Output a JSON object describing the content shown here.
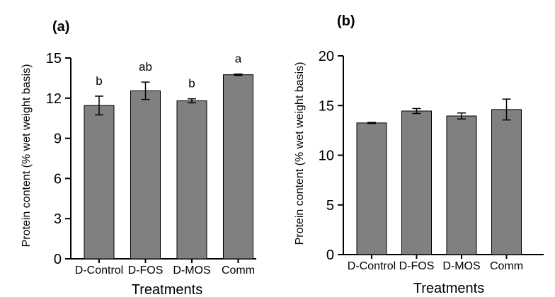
{
  "chart_data": [
    {
      "type": "bar",
      "panel_label": "(a)",
      "categories": [
        "D-Control",
        "D-FOS",
        "D-MOS",
        "Comm"
      ],
      "values": [
        11.45,
        12.55,
        11.8,
        13.75
      ],
      "errors": [
        0.7,
        0.65,
        0.15,
        0.05
      ],
      "significance": [
        "b",
        "ab",
        "b",
        "a"
      ],
      "xlabel": "Treatments",
      "ylabel": "Protein content (% wet weight basis)",
      "ylim": [
        0,
        15
      ],
      "yticks": [
        0,
        3,
        6,
        9,
        12,
        15
      ],
      "bar_color": "#808080"
    },
    {
      "type": "bar",
      "panel_label": "(b)",
      "categories": [
        "D-Control",
        "D-FOS",
        "D-MOS",
        "Comm"
      ],
      "values": [
        13.25,
        14.45,
        13.95,
        14.6
      ],
      "errors": [
        0.05,
        0.25,
        0.3,
        1.05
      ],
      "significance": [],
      "xlabel": "Treatments",
      "ylabel": "Protein content (% wet weight basis)",
      "ylim": [
        0,
        20
      ],
      "yticks": [
        0,
        5,
        10,
        15,
        20
      ],
      "bar_color": "#808080"
    }
  ]
}
